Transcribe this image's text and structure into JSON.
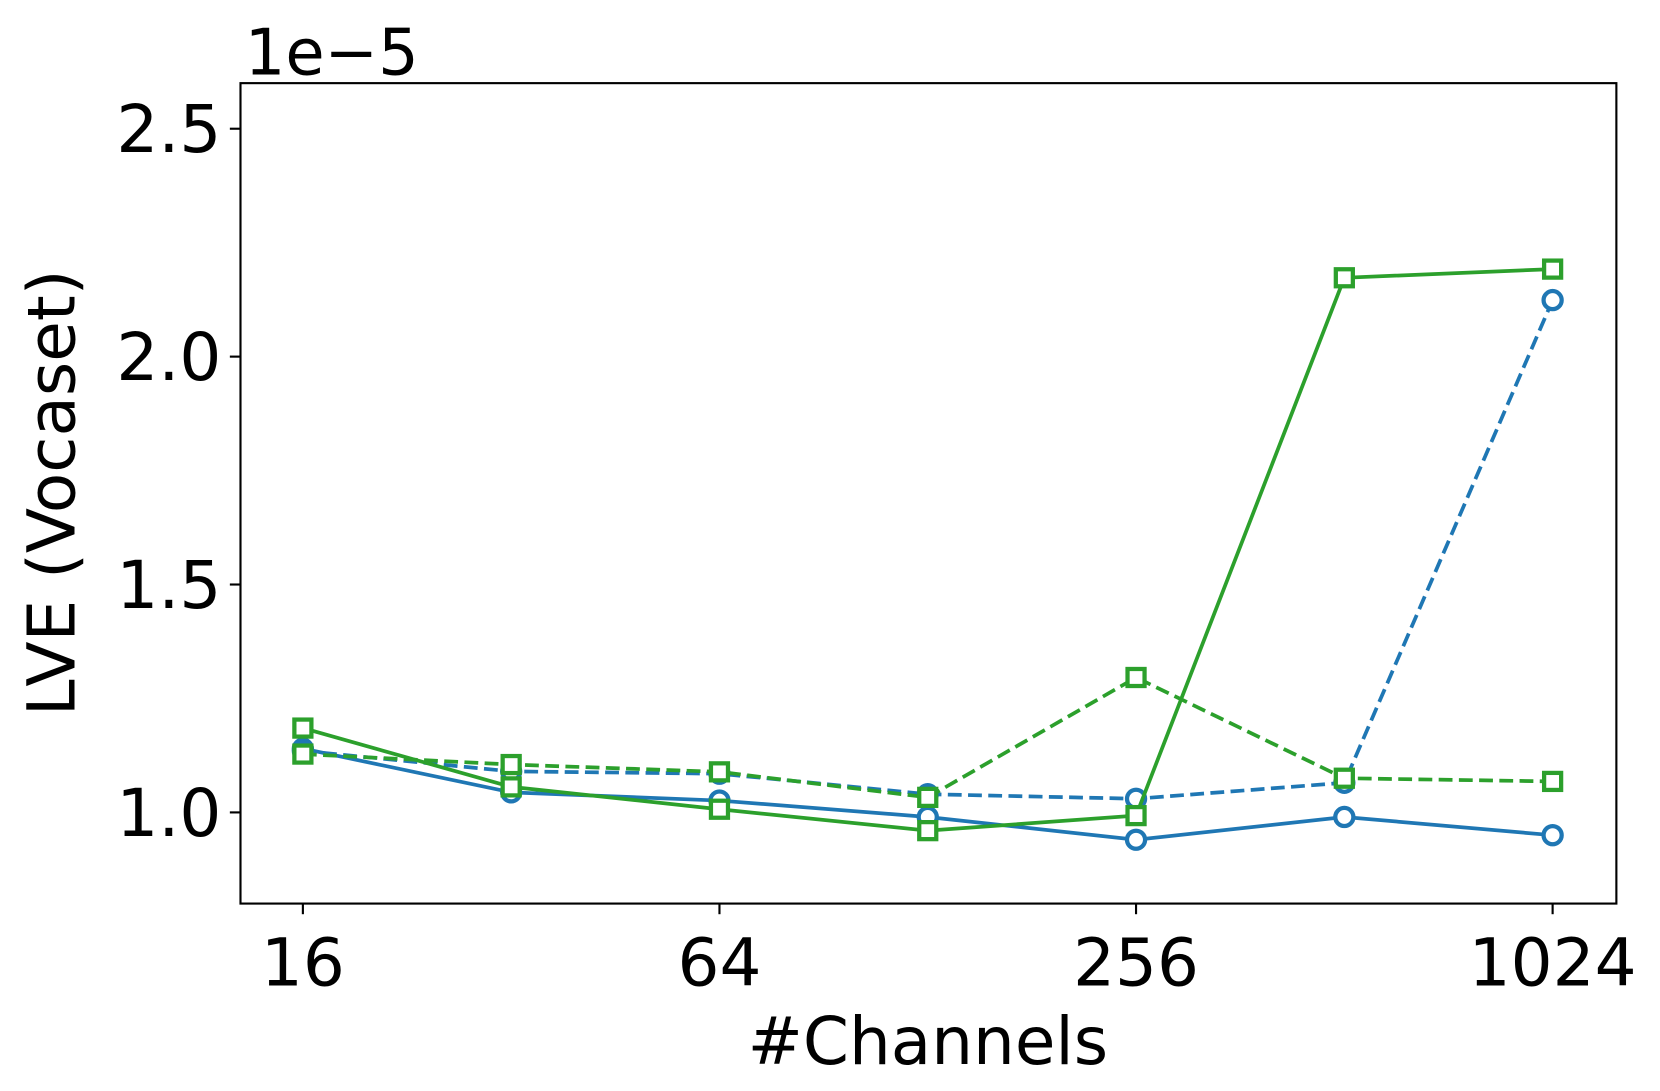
{
  "chart_data": {
    "type": "line",
    "x_label": "#Channels",
    "y_label": "LVE (Vocaset)",
    "y_offset_text": "1e−5",
    "x_scale": "log2",
    "x": [
      16,
      32,
      64,
      128,
      256,
      512,
      1024
    ],
    "xlim": [
      13,
      1266
    ],
    "xticks": [
      16,
      64,
      256,
      1024
    ],
    "ylim": [
      0.8,
      2.6
    ],
    "yticks": [
      {
        "value": 1,
        "label": "1.0"
      },
      1.5,
      {
        "value": 2,
        "label": "2.0"
      },
      2.5
    ],
    "grid": false,
    "series": [
      {
        "color": "#1f77b4",
        "linestyle": "solid",
        "marker": "circle",
        "values": [
          1.14,
          1.044,
          1.026,
          0.99,
          0.94,
          0.99,
          0.95
        ]
      },
      {
        "color": "#1f77b4",
        "linestyle": "dashed",
        "marker": "circle",
        "values": [
          1.135,
          1.09,
          1.085,
          1.04,
          1.03,
          1.065,
          2.124
        ]
      },
      {
        "color": "#2ca02c",
        "linestyle": "solid",
        "marker": "square",
        "values": [
          1.185,
          1.056,
          1.007,
          0.96,
          0.993,
          2.173,
          2.192
        ]
      },
      {
        "color": "#2ca02c",
        "linestyle": "dashed",
        "marker": "square",
        "values": [
          1.128,
          1.105,
          1.089,
          1.033,
          1.296,
          1.075,
          1.068
        ]
      }
    ]
  }
}
